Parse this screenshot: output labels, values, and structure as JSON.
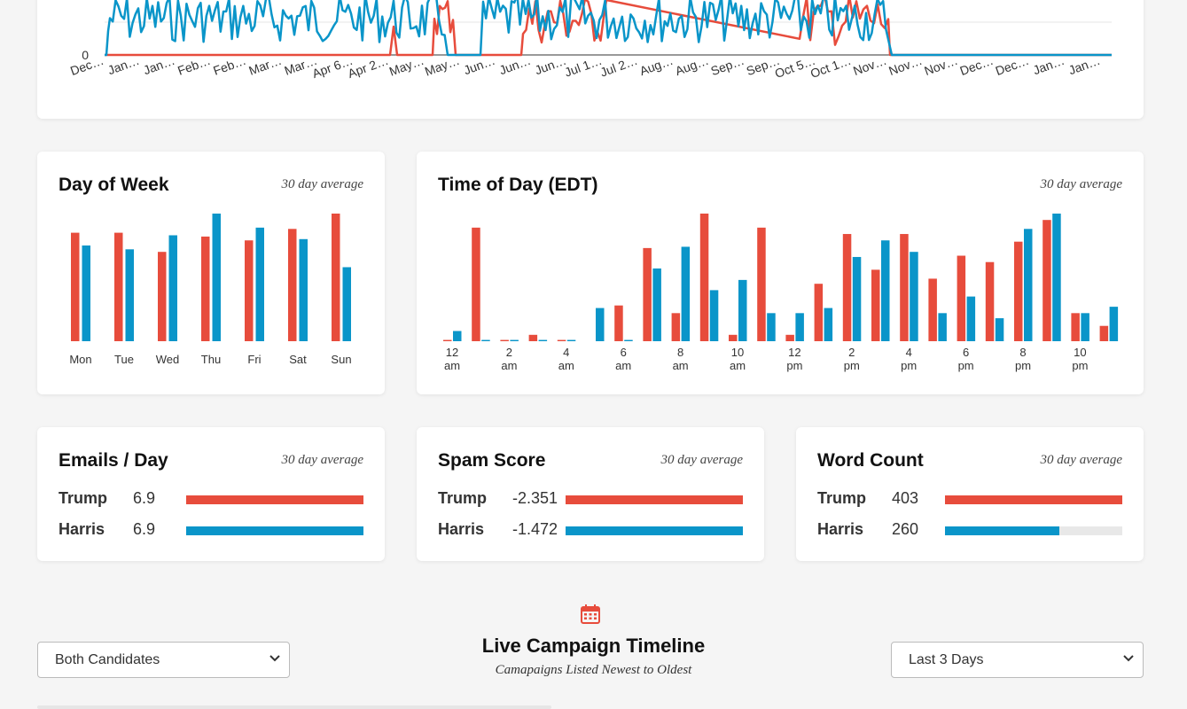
{
  "colors": {
    "trump": "#e74c3c",
    "harris": "#0a95c9"
  },
  "timeline": {
    "y_tick": "0",
    "x_labels": [
      "Dec…",
      "Jan…",
      "Jan…",
      "Feb…",
      "Feb…",
      "Mar…",
      "Mar…",
      "Apr 6…",
      "Apr 2…",
      "May…",
      "May…",
      "Jun…",
      "Jun…",
      "Jun…",
      "Jul 1…",
      "Jul 2…",
      "Aug…",
      "Aug…",
      "Sep…",
      "Sep…",
      "Oct 5…",
      "Oct 1…",
      "Nov…",
      "Nov…",
      "Nov…",
      "Dec…",
      "Dec…",
      "Jan…",
      "Jan…"
    ]
  },
  "day_of_week": {
    "title": "Day of Week",
    "subtitle": "30 day average"
  },
  "time_of_day": {
    "title": "Time of Day (EDT)",
    "subtitle": "30 day average"
  },
  "emails": {
    "title": "Emails / Day",
    "subtitle": "30 day average",
    "rows": [
      {
        "name": "Trump",
        "value": "6.9",
        "fraction": 1.0
      },
      {
        "name": "Harris",
        "value": "6.9",
        "fraction": 1.0
      }
    ]
  },
  "spam": {
    "title": "Spam Score",
    "subtitle": "30 day average",
    "rows": [
      {
        "name": "Trump",
        "value": "-2.351",
        "fraction": 1.0
      },
      {
        "name": "Harris",
        "value": "-1.472",
        "fraction": 1.0
      }
    ]
  },
  "words": {
    "title": "Word Count",
    "subtitle": "30 day average",
    "rows": [
      {
        "name": "Trump",
        "value": "403",
        "fraction": 1.0
      },
      {
        "name": "Harris",
        "value": "260",
        "fraction": 0.645
      }
    ]
  },
  "live": {
    "title": "Live Campaign Timeline",
    "subtitle": "Camapaigns Listed Newest to Oldest",
    "candidate_select": "Both Candidates",
    "range_select": "Last 3 Days",
    "icon": "calendar-icon"
  },
  "chart_data": [
    {
      "type": "bar",
      "categories": [
        "Mon",
        "Tue",
        "Wed",
        "Thu",
        "Fri",
        "Sat",
        "Sun"
      ],
      "series": [
        {
          "values": [
            0.85,
            0.85,
            0.7,
            0.82,
            0.79,
            0.88,
            1.0
          ]
        },
        {
          "values": [
            0.75,
            0.72,
            0.83,
            1.0,
            0.89,
            0.8,
            0.58
          ]
        }
      ],
      "ylim": [
        0,
        1
      ]
    },
    {
      "type": "bar",
      "categories": [
        "12 am",
        "1",
        "2 am",
        "3",
        "4 am",
        "5",
        "6 am",
        "7",
        "8 am",
        "9",
        "10 am",
        "11",
        "12 pm",
        "13",
        "2 pm",
        "15",
        "4 pm",
        "17",
        "6 pm",
        "19",
        "8 pm",
        "21",
        "10 pm",
        "23"
      ],
      "tick_labels": [
        {
          "num": "12",
          "ampm": "am"
        },
        {
          "num": "2",
          "ampm": "am"
        },
        {
          "num": "4",
          "ampm": "am"
        },
        {
          "num": "6",
          "ampm": "am"
        },
        {
          "num": "8",
          "ampm": "am"
        },
        {
          "num": "10",
          "ampm": "am"
        },
        {
          "num": "12",
          "ampm": "pm"
        },
        {
          "num": "2",
          "ampm": "pm"
        },
        {
          "num": "4",
          "ampm": "pm"
        },
        {
          "num": "6",
          "ampm": "pm"
        },
        {
          "num": "8",
          "ampm": "pm"
        },
        {
          "num": "10",
          "ampm": "pm"
        }
      ],
      "series": [
        {
          "values": [
            0.01,
            0.89,
            0.01,
            0.05,
            0.01,
            0.0,
            0.28,
            0.73,
            0.22,
            1.0,
            0.05,
            0.89,
            0.05,
            0.45,
            0.84,
            0.56,
            0.84,
            0.49,
            0.67,
            0.62,
            0.78,
            0.95,
            0.22,
            0.12
          ]
        },
        {
          "values": [
            0.08,
            0.01,
            0.01,
            0.01,
            0.01,
            0.26,
            0.01,
            0.57,
            0.74,
            0.4,
            0.48,
            0.22,
            0.22,
            0.26,
            0.66,
            0.79,
            0.7,
            0.22,
            0.35,
            0.18,
            0.88,
            1.0,
            0.22,
            0.27
          ]
        }
      ],
      "ylim": [
        0,
        1
      ]
    },
    {
      "type": "line",
      "y_ticks": [
        "0"
      ],
      "x_labels": [
        "Dec…",
        "Jan…",
        "Jan…",
        "Feb…",
        "Feb…",
        "Mar…",
        "Mar…",
        "Apr 6…",
        "Apr 2…",
        "May…",
        "May…",
        "Jun…",
        "Jun…",
        "Jun…",
        "Jul 1…",
        "Jul 2…",
        "Aug…",
        "Aug…",
        "Sep…",
        "Sep…",
        "Oct 5…",
        "Oct 1…",
        "Nov…",
        "Nov…",
        "Nov…",
        "Dec…",
        "Dec…",
        "Jan…",
        "Jan…"
      ],
      "note": "daily email counts for two series over ~14 months; values above visible area are clipped"
    }
  ]
}
